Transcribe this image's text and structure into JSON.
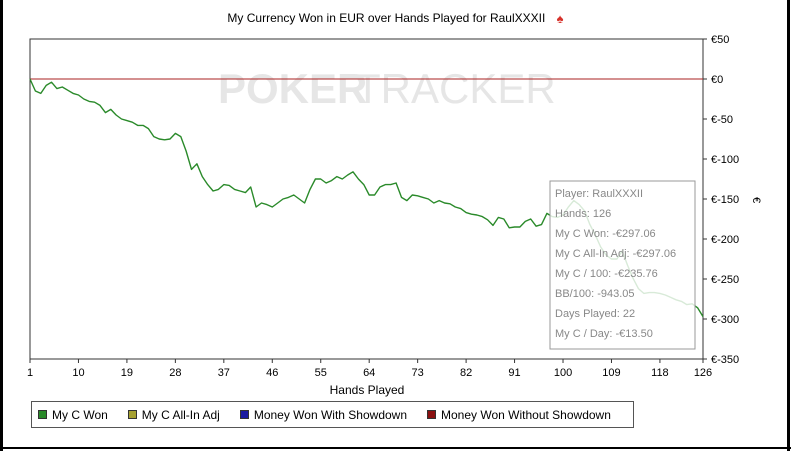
{
  "chart_data": {
    "type": "line",
    "title": "My Currency Won in EUR over Hands Played for RaulXXXII",
    "xlabel": "Hands Played",
    "ylabel": "",
    "y_axis_symbol": "€",
    "xlim": [
      1,
      126
    ],
    "ylim": [
      -350,
      50
    ],
    "x_ticks": [
      "1",
      "10",
      "19",
      "28",
      "37",
      "46",
      "55",
      "64",
      "73",
      "82",
      "91",
      "100",
      "109",
      "118",
      "126"
    ],
    "y_ticks": [
      "€50",
      "€0",
      "€-50",
      "€-100",
      "€-150",
      "€-200",
      "€-250",
      "€-300",
      "€-350"
    ],
    "reference_line": {
      "y": 0,
      "color": "#aa2020"
    },
    "series": [
      {
        "name": "My C Won",
        "color": "#2a8a2a",
        "x": [
          1,
          2,
          3,
          4,
          5,
          6,
          7,
          8,
          9,
          10,
          11,
          12,
          13,
          14,
          15,
          16,
          17,
          18,
          19,
          20,
          21,
          22,
          23,
          24,
          25,
          26,
          27,
          28,
          29,
          30,
          31,
          32,
          33,
          34,
          35,
          36,
          37,
          38,
          39,
          40,
          41,
          42,
          43,
          44,
          45,
          46,
          47,
          48,
          49,
          50,
          51,
          52,
          53,
          54,
          55,
          56,
          57,
          58,
          59,
          60,
          61,
          62,
          63,
          64,
          65,
          66,
          67,
          68,
          69,
          70,
          71,
          72,
          73,
          74,
          75,
          76,
          77,
          78,
          79,
          80,
          81,
          82,
          83,
          84,
          85,
          86,
          87,
          88,
          89,
          90,
          91,
          92,
          93,
          94,
          95,
          96,
          97,
          98,
          99,
          100,
          101,
          102,
          103,
          104,
          105,
          106,
          107,
          108,
          109,
          110,
          111,
          112,
          113,
          114,
          115,
          116,
          117,
          118,
          119,
          120,
          121,
          122,
          123,
          124,
          125,
          126
        ],
        "values": [
          0,
          -15,
          -18,
          -8,
          -4,
          -12,
          -10,
          -14,
          -18,
          -20,
          -25,
          -28,
          -29,
          -33,
          -42,
          -38,
          -45,
          -50,
          -52,
          -54,
          -58,
          -58,
          -62,
          -72,
          -75,
          -76,
          -75,
          -68,
          -72,
          -90,
          -113,
          -106,
          -122,
          -132,
          -140,
          -138,
          -132,
          -133,
          -138,
          -140,
          -142,
          -135,
          -160,
          -155,
          -157,
          -160,
          -155,
          -150,
          -148,
          -145,
          -150,
          -155,
          -138,
          -125,
          -125,
          -130,
          -127,
          -122,
          -125,
          -120,
          -116,
          -125,
          -132,
          -145,
          -145,
          -135,
          -132,
          -132,
          -130,
          -148,
          -152,
          -145,
          -146,
          -148,
          -150,
          -155,
          -152,
          -155,
          -156,
          -160,
          -162,
          -167,
          -169,
          -170,
          -172,
          -176,
          -183,
          -173,
          -175,
          -186,
          -185,
          -185,
          -178,
          -175,
          -184,
          -182,
          -168,
          -172,
          -173,
          -170,
          -160,
          -152,
          -157,
          -165,
          -182,
          -195,
          -210,
          -220,
          -225,
          -225,
          -215,
          -233,
          -249,
          -262,
          -268,
          -267,
          -267,
          -268,
          -270,
          -273,
          -276,
          -278,
          -282,
          -281,
          -286,
          -297.06
        ]
      },
      {
        "name": "My C All-In Adj",
        "color": "#a5a030",
        "values": []
      },
      {
        "name": "Money Won With Showdown",
        "color": "#1a1aa0",
        "values": []
      },
      {
        "name": "Money Won Without Showdown",
        "color": "#8a1010",
        "values": []
      }
    ],
    "legend_position": "bottom-left",
    "grid": false,
    "watermark": {
      "left": "POKER",
      "right": "TRACKER"
    },
    "tooltip": {
      "player": "Player: RaulXXXII",
      "hands": "Hands: 126",
      "won": "My C Won: -€297.06",
      "allin": "My C All-In Adj: -€297.06",
      "per100": "My C / 100: -€235.76",
      "bb100": "BB/100: -943.05",
      "days": "Days Played: 22",
      "perday": "My C / Day: -€13.50"
    }
  }
}
